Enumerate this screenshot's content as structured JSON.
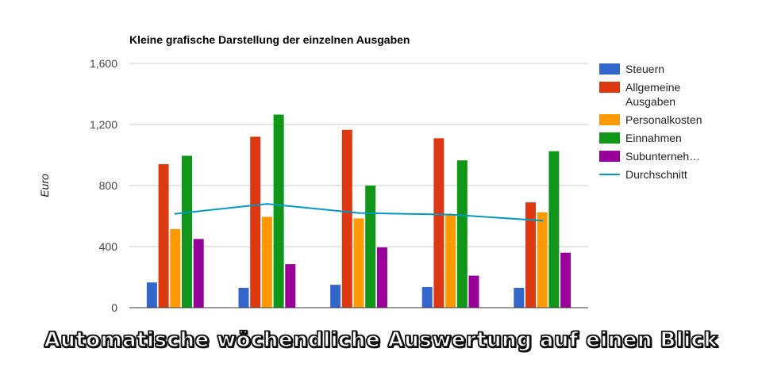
{
  "chart_data": {
    "type": "bar",
    "title": "Kleine grafische Darstellung der einzelnen Ausgaben",
    "xlabel": "",
    "ylabel": "Euro",
    "ylim": [
      0,
      1600
    ],
    "yticks": [
      0,
      400,
      800,
      1200,
      1600
    ],
    "ytick_labels": [
      "0",
      "400",
      "800",
      "1,200",
      "1,600"
    ],
    "grid": true,
    "legend_position": "right",
    "categories": [
      "",
      "",
      "",
      "",
      ""
    ],
    "series": [
      {
        "name": "Steuern",
        "type": "bar",
        "color": "#3366cc",
        "values": [
          165,
          130,
          150,
          135,
          130
        ]
      },
      {
        "name": "Allgemeine Ausgaben",
        "type": "bar",
        "color": "#dc3912",
        "values": [
          940,
          1120,
          1165,
          1110,
          690
        ]
      },
      {
        "name": "Personalkosten",
        "type": "bar",
        "color": "#ff9900",
        "values": [
          515,
          595,
          585,
          610,
          625
        ]
      },
      {
        "name": "Einnahmen",
        "type": "bar",
        "color": "#109618",
        "values": [
          995,
          1265,
          800,
          965,
          1025
        ]
      },
      {
        "name": "Subunterneh…",
        "type": "bar",
        "color": "#990099",
        "values": [
          450,
          285,
          395,
          210,
          360
        ]
      },
      {
        "name": "Durchschnitt",
        "type": "line",
        "color": "#0099c6",
        "values": [
          615,
          680,
          620,
          610,
          570
        ]
      }
    ]
  },
  "legend_entries": [
    {
      "lines": [
        "Steuern"
      ],
      "color": "#3366cc",
      "kind": "box"
    },
    {
      "lines": [
        "Allgemeine",
        "Ausgaben"
      ],
      "color": "#dc3912",
      "kind": "box"
    },
    {
      "lines": [
        "Personalkosten"
      ],
      "color": "#ff9900",
      "kind": "box"
    },
    {
      "lines": [
        "Einnahmen"
      ],
      "color": "#109618",
      "kind": "box"
    },
    {
      "lines": [
        "Subunterneh…"
      ],
      "color": "#990099",
      "kind": "box"
    },
    {
      "lines": [
        "Durchschnitt"
      ],
      "color": "#0099c6",
      "kind": "line"
    }
  ],
  "banner": {
    "text": "Automatische wöchendliche Auswertung auf einen Blick"
  }
}
